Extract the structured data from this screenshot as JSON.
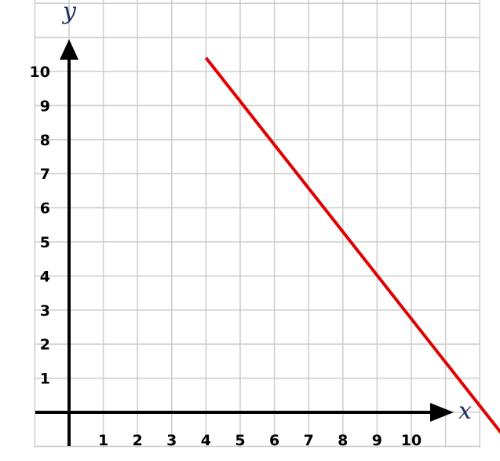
{
  "chart_data": {
    "type": "line",
    "xlabel": "x",
    "ylabel": "y",
    "xlim": [
      0,
      11.9
    ],
    "ylim": [
      0,
      11.9
    ],
    "x_ticks": [
      "1",
      "2",
      "3",
      "4",
      "5",
      "6",
      "7",
      "8",
      "9",
      "10"
    ],
    "y_ticks": [
      "1",
      "2",
      "3",
      "4",
      "5",
      "6",
      "7",
      "8",
      "9",
      "10"
    ],
    "grid": true,
    "series": [
      {
        "color": "#e00000",
        "points": [
          {
            "x": 4,
            "y": 10.4
          },
          {
            "x": 12.7,
            "y": -0.7
          }
        ]
      }
    ]
  }
}
